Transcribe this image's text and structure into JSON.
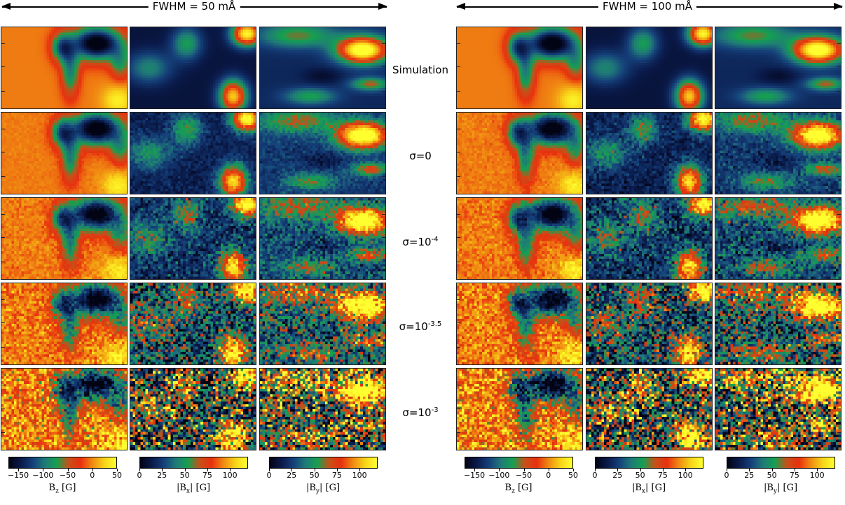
{
  "columns": [
    {
      "header": "FWHM = 50 mÅ"
    },
    {
      "header": "FWHM = 100 mÅ"
    }
  ],
  "rows": [
    {
      "label": "Simulation",
      "base": "",
      "exp": ""
    },
    {
      "label": "",
      "base": "σ=0",
      "exp": ""
    },
    {
      "label": "",
      "base": "σ=10",
      "exp": "-4"
    },
    {
      "label": "",
      "base": "σ=10",
      "exp": "-3.5"
    },
    {
      "label": "",
      "base": "σ=10",
      "exp": "-3"
    }
  ],
  "colorbars": [
    {
      "quantity": "Bz",
      "title_main": "B",
      "title_sub": "z",
      "title_unit": " [G]",
      "pre": "",
      "post": "",
      "ticks": [
        "-150",
        "-100",
        "-50",
        "0",
        "50"
      ],
      "tick_values": [
        -150,
        -100,
        -50,
        0,
        50
      ],
      "range": [
        -170,
        50
      ]
    },
    {
      "quantity": "|Bx|",
      "title_main": "B",
      "title_sub": "x",
      "title_unit": " [G]",
      "pre": "|",
      "post": "|",
      "ticks": [
        "0",
        "25",
        "50",
        "75",
        "100"
      ],
      "tick_values": [
        0,
        25,
        50,
        75,
        100
      ],
      "range": [
        0,
        120
      ]
    },
    {
      "quantity": "|By|",
      "title_main": "B",
      "title_sub": "y",
      "title_unit": " [G]",
      "pre": "|",
      "post": "|",
      "ticks": [
        "0",
        "25",
        "50",
        "75",
        "100"
      ],
      "tick_values": [
        0,
        25,
        50,
        75,
        100
      ],
      "range": [
        0,
        120
      ]
    }
  ],
  "colormap": [
    "#020414",
    "#0a1a4a",
    "#15407a",
    "#1f7a78",
    "#15a050",
    "#c85018",
    "#e8300f",
    "#f08a12",
    "#f8d418",
    "#ffff30"
  ]
}
